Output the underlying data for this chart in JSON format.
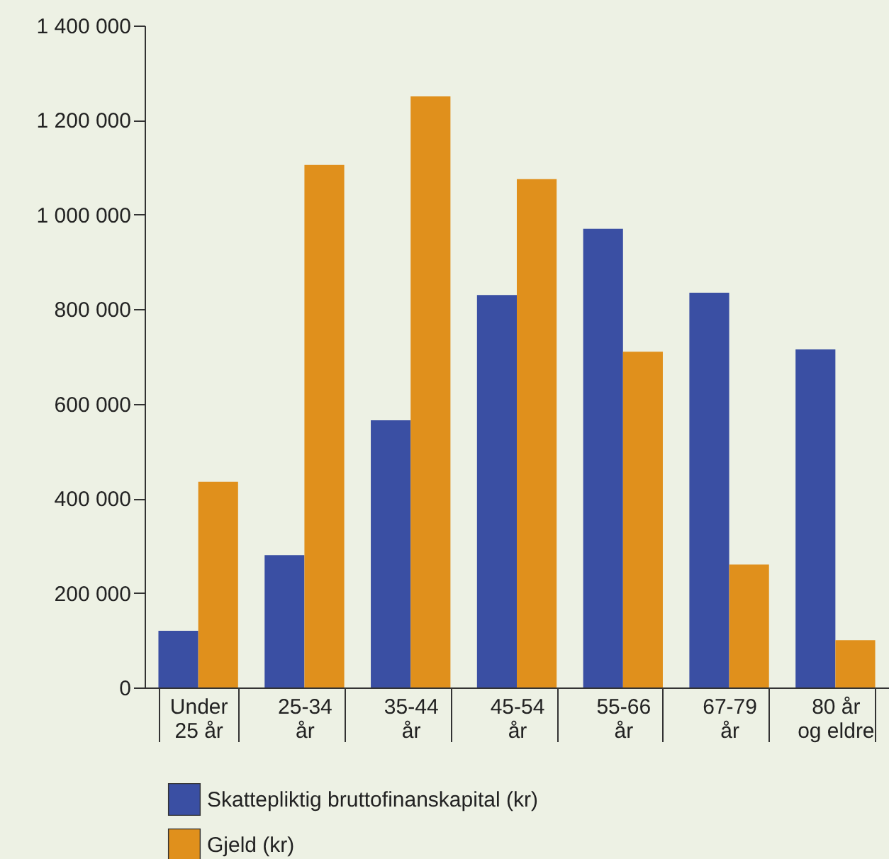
{
  "chart_data": {
    "type": "bar",
    "categories": [
      "Under\n25 år",
      "25-34\når",
      "35-44\når",
      "45-54\når",
      "55-66\når",
      "67-79\når",
      "80 år\nog eldre"
    ],
    "series": [
      {
        "name": "Skattepliktig bruttofinanskapital (kr)",
        "color": "#3a4fa3",
        "values": [
          120000,
          280000,
          565000,
          830000,
          970000,
          835000,
          715000
        ]
      },
      {
        "name": "Gjeld (kr)",
        "color": "#e0901c",
        "values": [
          435000,
          1105000,
          1250000,
          1075000,
          710000,
          260000,
          100000
        ]
      }
    ],
    "ylim": [
      0,
      1400000
    ],
    "yticks": [
      0,
      {
        "value": 200000,
        "label": "200 000"
      },
      {
        "value": 400000,
        "label": "400 000"
      },
      {
        "value": 600000,
        "label": "600 000"
      },
      {
        "value": 800000,
        "label": "800 000"
      },
      {
        "value": 1000000,
        "label": "1 000 000"
      },
      {
        "value": 1200000,
        "label": "1 200 000"
      },
      {
        "value": 1400000,
        "label": "1 400 000"
      }
    ],
    "grid": false,
    "legend": "bottom left"
  }
}
